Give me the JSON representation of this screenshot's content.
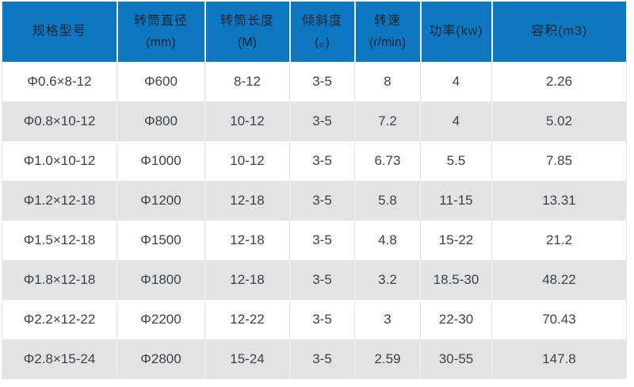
{
  "table": {
    "name": "drum-specification-table",
    "columns": [
      {
        "label": "规格型号",
        "sub": ""
      },
      {
        "label": "转筒直径",
        "sub": "(mm)"
      },
      {
        "label": "转筒长度",
        "sub": "(M)"
      },
      {
        "label": "倾斜度",
        "sub": "(。)"
      },
      {
        "label": "转速",
        "sub": "(r/min)"
      },
      {
        "label": "功率(kw)",
        "sub": ""
      },
      {
        "label": "容积(m3)",
        "sub": ""
      }
    ],
    "rows": [
      [
        "Φ0.6×8-12",
        "Φ600",
        "8-12",
        "3-5",
        "8",
        "4",
        "2.26"
      ],
      [
        "Φ0.8×10-12",
        "Φ800",
        "10-12",
        "3-5",
        "7.2",
        "4",
        "5.02"
      ],
      [
        "Φ1.0×10-12",
        "Φ1000",
        "10-12",
        "3-5",
        "6.73",
        "5.5",
        "7.85"
      ],
      [
        "Φ1.2×12-18",
        "Φ1200",
        "12-18",
        "3-5",
        "5.8",
        "11-15",
        "13.31"
      ],
      [
        "Φ1.5×12-18",
        "Φ1500",
        "12-18",
        "3-5",
        "4.8",
        "15-22",
        "21.2"
      ],
      [
        "Φ1.8×12-18",
        "Φ1800",
        "12-18",
        "3-5",
        "3.2",
        "18.5-30",
        "48.22"
      ],
      [
        "Φ2.2×12-22",
        "Φ2200",
        "12-22",
        "3-5",
        "3",
        "22-30",
        "70.43"
      ],
      [
        "Φ2.8×15-24",
        "Φ2800",
        "15-24",
        "3-5",
        "2.59",
        "30-55",
        "147.8"
      ]
    ],
    "colors": {
      "header_bg": "#0D77C2",
      "header_text": "#12262F",
      "row_alt_bg": "#E3E3E3",
      "row_bg": "#FFFFFF",
      "body_text": "#3A434C"
    }
  }
}
